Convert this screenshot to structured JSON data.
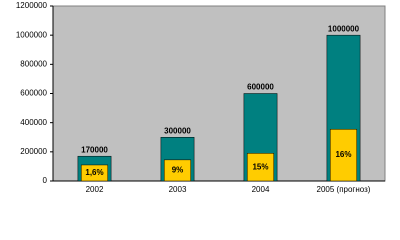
{
  "chart_data": {
    "type": "bar",
    "categories": [
      "2002",
      "2003",
      "2004",
      "2005 (прогноз)"
    ],
    "series": [
      {
        "color": "#008080",
        "values": [
          170000,
          300000,
          600000,
          1000000
        ]
      },
      {
        "color": "#ffcc00",
        "values": [
          110000,
          145000,
          190000,
          355000
        ],
        "value_labels": [
          "1,6%",
          "9%",
          "15%",
          "16%"
        ]
      }
    ],
    "ylim": [
      0,
      1200000
    ],
    "yticks": [
      0,
      200000,
      400000,
      600000,
      800000,
      1000000,
      1200000
    ],
    "grid": false,
    "background": "#c0c0c0"
  }
}
